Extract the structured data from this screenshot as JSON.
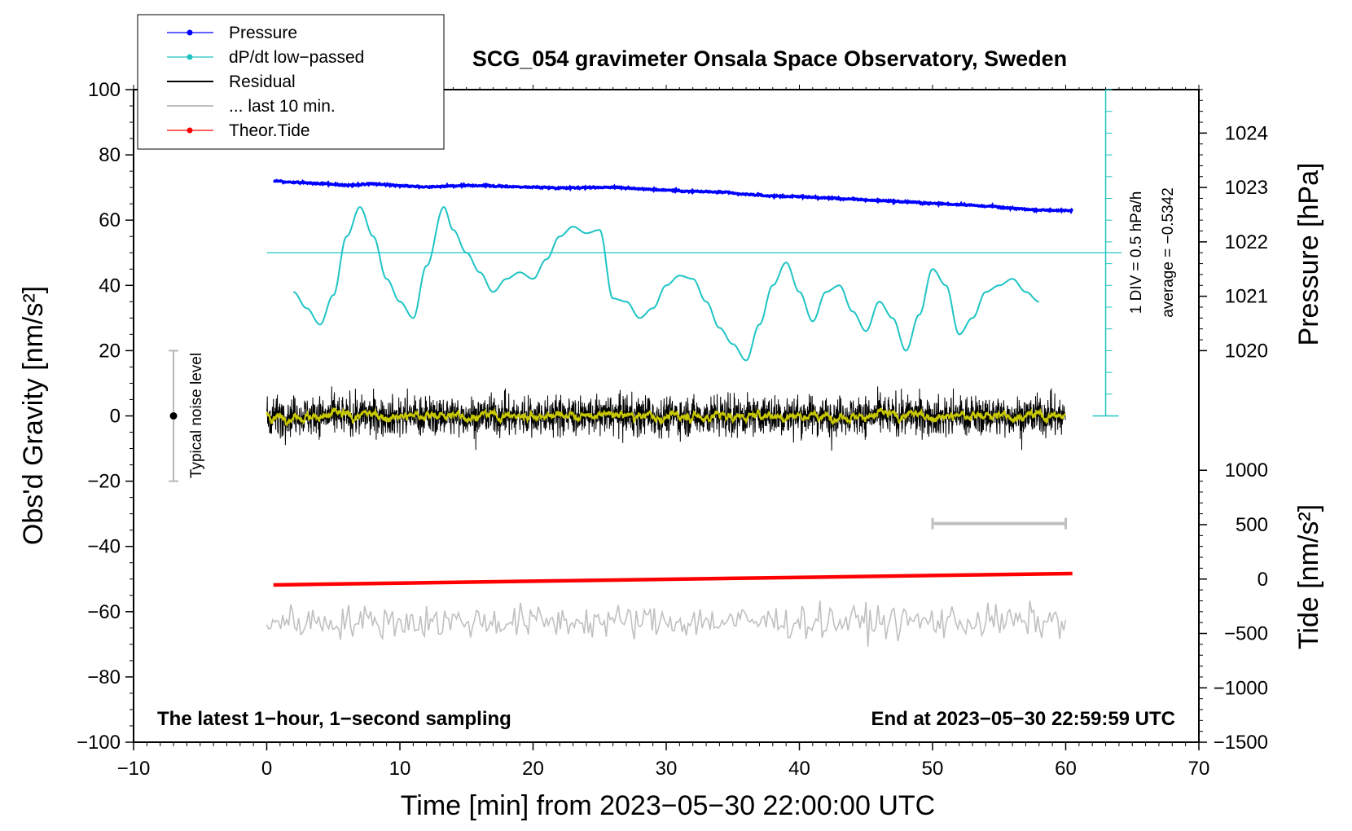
{
  "chart_data": {
    "type": "line",
    "title": "SCG_054 gravimeter Onsala Space Observatory, Sweden",
    "xlabel": "Time [min] from 2023−05−30 22:00:00 UTC",
    "ylabel": "Obs'd Gravity [nm/s²]",
    "ylabel_right_pressure": "Pressure [hPa]",
    "ylabel_right_tide": "Tide [nm/s²]",
    "xlim": [
      -10,
      70
    ],
    "ylim": [
      -100,
      100
    ],
    "xticks": [
      -10,
      0,
      10,
      20,
      30,
      40,
      50,
      60,
      70
    ],
    "xtick_labels": [
      "−10",
      "0",
      "10",
      "20",
      "30",
      "40",
      "50",
      "60",
      "70"
    ],
    "yticks": [
      -100,
      -80,
      -60,
      -40,
      -20,
      0,
      20,
      40,
      60,
      80,
      100
    ],
    "ytick_labels": [
      "−100",
      "−80",
      "−60",
      "−40",
      "−20",
      "0",
      "20",
      "40",
      "60",
      "80",
      "100"
    ],
    "pressure_axis": {
      "ticks": [
        1020,
        1021,
        1022,
        1023,
        1024
      ],
      "tick_labels": [
        "1020",
        "1021",
        "1022",
        "1023",
        "1024"
      ],
      "gravity_at_1020": 20,
      "gravity_per_hPa": 16.67
    },
    "tide_axis": {
      "ticks": [
        -1500,
        -1000,
        -500,
        0,
        500,
        1000
      ],
      "tick_labels": [
        "−1500",
        "−1000",
        "−500",
        "0",
        "500",
        "1000"
      ],
      "gravity_at_0": -50,
      "gravity_per_500": 16.67
    },
    "dpdt_axis": {
      "y_bottom": 0,
      "y_top": 100,
      "divisions": 15,
      "zero_line": 50,
      "div_label": "1 DIV = 0.5 hPa/h",
      "average_label": "average = −0.5342"
    },
    "noise_level": {
      "x": -7,
      "y": 0,
      "low": -20,
      "high": 20,
      "label": "Typical noise level"
    },
    "last10_bar": {
      "x_start": 50,
      "x_end": 60,
      "y": -33
    },
    "series": [
      {
        "name": "Pressure",
        "color": "#0000ff",
        "kind": "pressure",
        "x": [
          0.5,
          2,
          4,
          6,
          8,
          10,
          12,
          14,
          16,
          18,
          20,
          22,
          24,
          26,
          28,
          30,
          32,
          34,
          36,
          38,
          40,
          42,
          44,
          46,
          48,
          50,
          52,
          54,
          56,
          58,
          60.5
        ],
        "values": [
          72,
          71.6,
          71.2,
          70.7,
          71.1,
          70.6,
          70.2,
          70.5,
          70.6,
          70.3,
          70.1,
          69.9,
          70.0,
          70.1,
          69.6,
          69.2,
          68.8,
          68.6,
          67.9,
          67.4,
          67.2,
          66.8,
          66.4,
          66.0,
          65.6,
          65.1,
          64.8,
          64.3,
          63.6,
          63.1,
          62.9
        ]
      },
      {
        "name": "dP/dt low−passed",
        "color": "#20c4c4",
        "kind": "dpdt",
        "x": [
          2,
          3,
          4,
          5,
          6,
          7,
          8,
          9,
          10,
          11,
          12,
          13.3,
          14,
          15,
          16,
          17,
          18,
          19,
          20,
          21,
          22,
          23,
          24,
          25,
          26,
          27,
          28,
          29,
          30,
          31,
          32,
          33,
          34,
          35,
          36,
          37,
          38,
          39,
          40,
          41,
          42,
          43,
          44,
          45,
          46,
          47,
          48,
          49,
          50,
          51,
          52,
          53,
          54,
          55,
          56,
          57,
          58
        ],
        "values": [
          38,
          33,
          28,
          37,
          55,
          64,
          55,
          42,
          35,
          30,
          46,
          64,
          57,
          50,
          44,
          38,
          42,
          44,
          42,
          48,
          55,
          58,
          56,
          57,
          36,
          35,
          30,
          33,
          40,
          43,
          42,
          35,
          27,
          22,
          17,
          28,
          40,
          47,
          38,
          29,
          38,
          40,
          32,
          26,
          35,
          30,
          20,
          31,
          45,
          40,
          25,
          30,
          38,
          40,
          42,
          38,
          35
        ]
      },
      {
        "name": "Residual",
        "color": "#000000",
        "kind": "residual"
      },
      {
        "name": "... last 10 min.",
        "color": "#c0c0c0",
        "kind": "last10"
      },
      {
        "name": "Theor.Tide",
        "color": "#ff0000",
        "kind": "tide",
        "x": [
          0.5,
          60.5
        ],
        "values": [
          -51.8,
          -48.3
        ]
      }
    ]
  },
  "annotations": {
    "left_note": "The latest 1−hour, 1−second sampling",
    "right_note": "End at 2023−05−30 22:59:59 UTC"
  }
}
